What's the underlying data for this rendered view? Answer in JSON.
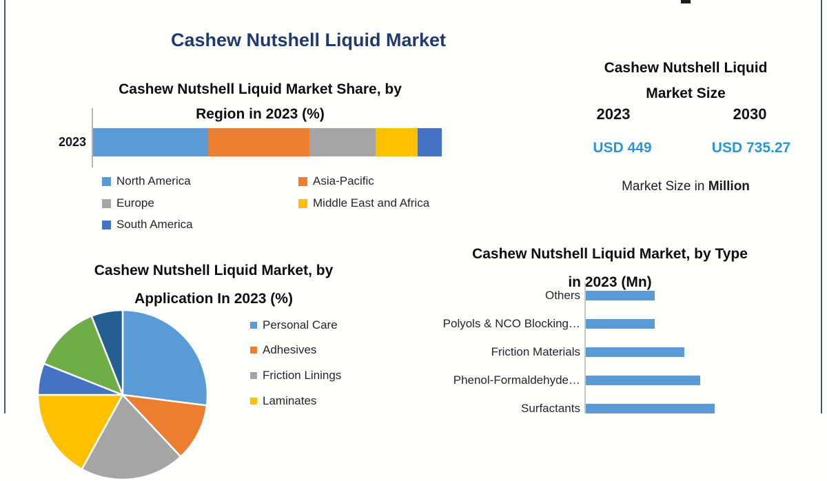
{
  "main_title": "Cashew Nutshell Liquid Market",
  "colors": {
    "title_navy": "#203a6e",
    "value_blue": "#2b96d4",
    "bar_blue": "#5B9BD5",
    "frame_border": "#4a575f",
    "axis_gray": "#b5b5b5"
  },
  "sections": {
    "region": {
      "title_line1": "Cashew Nutshell Liquid Market Share, by",
      "title_line2": "Region in 2023 (%)",
      "y_axis_label": "2023"
    },
    "market_size": {
      "title_line1": "Cashew Nutshell Liquid",
      "title_line2": "Market Size",
      "year_left": "2023",
      "year_right": "2030",
      "value_left": "USD 449",
      "value_right": "USD 735.27",
      "caption_prefix": "Market Size in ",
      "caption_bold": "Million"
    },
    "application": {
      "title_line1": "Cashew Nutshell Liquid Market, by",
      "title_line2": "Application In 2023 (%)"
    },
    "type": {
      "title_line1": "Cashew Nutshell Liquid Market, by Type",
      "title_line2": "in 2023 (Mn)"
    }
  },
  "chart_data": [
    {
      "type": "bar",
      "subtype": "stacked-horizontal",
      "title": "Cashew Nutshell Liquid Market Share, by Region in 2023 (%)",
      "categories": [
        "2023"
      ],
      "series": [
        {
          "name": "North America",
          "values": [
            33
          ],
          "color": "#5B9BD5"
        },
        {
          "name": "Asia-Pacific",
          "values": [
            29
          ],
          "color": "#ED7D31"
        },
        {
          "name": "Europe",
          "values": [
            19
          ],
          "color": "#A5A5A5"
        },
        {
          "name": "Middle East and Africa",
          "values": [
            12
          ],
          "color": "#FFC000"
        },
        {
          "name": "South America",
          "values": [
            7
          ],
          "color": "#4472C4"
        }
      ],
      "xlim": [
        0,
        100
      ],
      "legend_position": "bottom",
      "grid": false
    },
    {
      "type": "pie",
      "title": "Cashew Nutshell Liquid Market, by Application In 2023 (%)",
      "start_angle_deg": 0,
      "legend_position": "right",
      "slices": [
        {
          "label": "Personal Care",
          "value": 27,
          "color": "#5B9BD5"
        },
        {
          "label": "Adhesives",
          "value": 11,
          "color": "#ED7D31"
        },
        {
          "label": "Friction Linings",
          "value": 20,
          "color": "#A5A5A5"
        },
        {
          "label": "Laminates",
          "value": 17,
          "color": "#FFC000"
        },
        {
          "label": null,
          "value": 6,
          "color": "#4472C4"
        },
        {
          "label": null,
          "value": 13,
          "color": "#70AD47"
        },
        {
          "label": null,
          "value": 6,
          "color": "#255E91"
        }
      ],
      "legend_visible_labels": [
        "Personal Care",
        "Adhesives",
        "Friction Linings",
        "Laminates"
      ]
    },
    {
      "type": "bar",
      "subtype": "horizontal",
      "title": "Cashew Nutshell Liquid Market, by Type in 2023 (Mn)",
      "categories": [
        "Others",
        "Polyols & NCO Blocking…",
        "Friction Materials",
        "Phenol-Formaldehyde…",
        "Surfactants"
      ],
      "values": [
        80,
        80,
        115,
        133,
        150
      ],
      "color": "#5B9BD5",
      "grid": false
    },
    {
      "type": "table",
      "title": "Cashew Nutshell Liquid Market Size",
      "columns": [
        "2023",
        "2030"
      ],
      "rows": [
        [
          "USD 449",
          "USD 735.27"
        ]
      ],
      "caption": "Market Size in Million"
    }
  ]
}
